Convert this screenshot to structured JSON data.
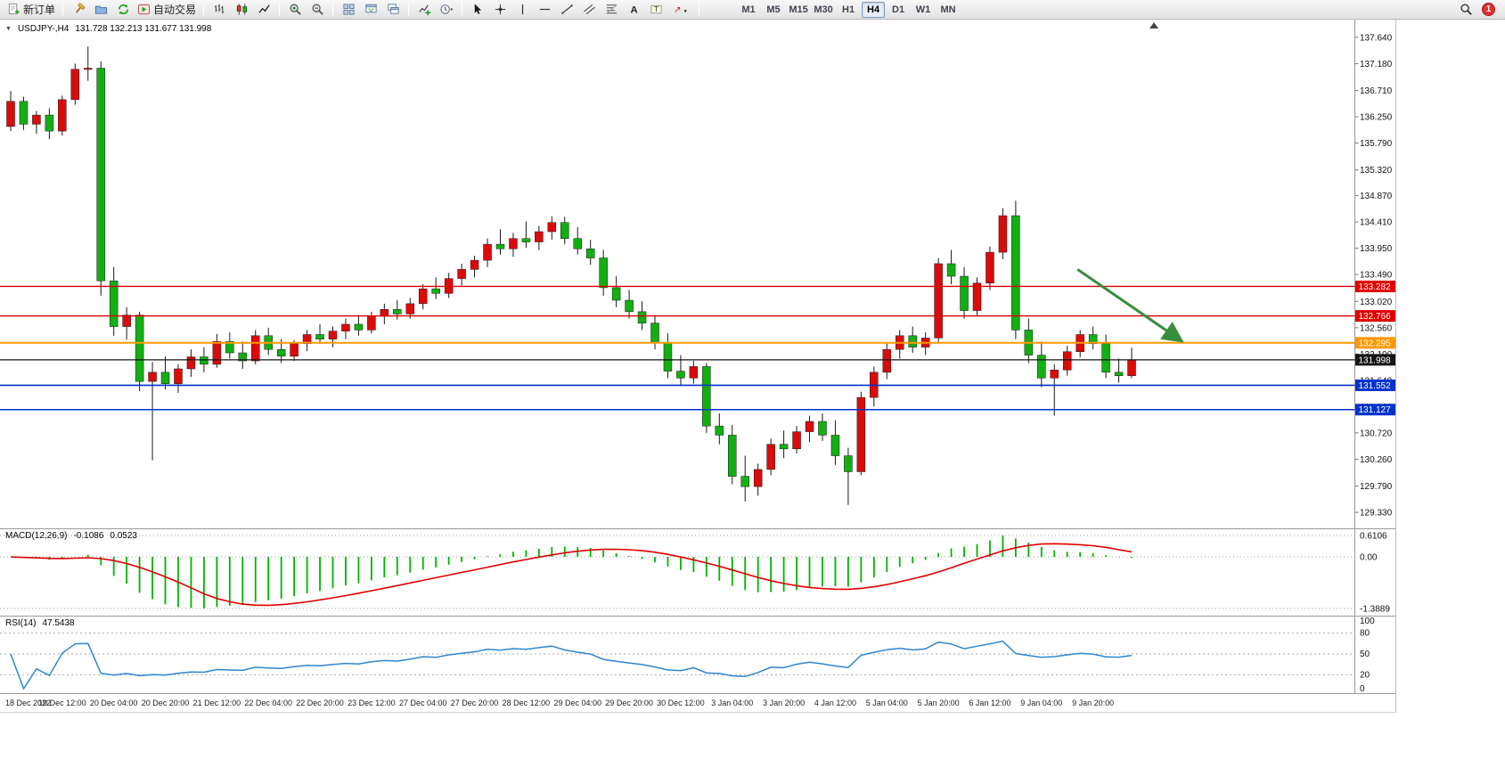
{
  "toolbar": {
    "new_order_label": "新订单",
    "autotrading_label": "自动交易",
    "timeframes": [
      "M1",
      "M5",
      "M15",
      "M30",
      "H1",
      "H4",
      "D1",
      "W1",
      "MN"
    ],
    "active_timeframe": "H4",
    "notification_badge": "1"
  },
  "chart_header": {
    "symbol_period": "USDJPY-,H4",
    "ohlc": "131.728 132.213 131.677 131.998"
  },
  "chart_data": {
    "type": "candlestick",
    "symbol": "USDJPY-",
    "timeframe": "H4",
    "last_bar": {
      "open": 131.728,
      "high": 132.213,
      "low": 131.677,
      "close": 131.998
    },
    "colors": {
      "up": "#dd0a0a",
      "down": "#12af12",
      "wick": "#1a1a1a",
      "macd_hist": "#00b300",
      "macd_signal": "#e00000",
      "rsi_line": "#2e86d0",
      "arrow": "#388e3c"
    },
    "price_axis_labels": [
      "137.640",
      "137.180",
      "136.710",
      "136.250",
      "135.790",
      "135.320",
      "134.870",
      "134.410",
      "133.950",
      "133.490",
      "133.020",
      "132.560",
      "132.100",
      "131.640",
      "131.180",
      "130.720",
      "130.260",
      "129.790",
      "129.330"
    ],
    "time_label_step": 4,
    "time_labels": [
      "18 Dec 2022",
      "19 Dec 12:00",
      "20 Dec 04:00",
      "20 Dec 20:00",
      "21 Dec 12:00",
      "22 Dec 04:00",
      "22 Dec 20:00",
      "23 Dec 12:00",
      "27 Dec 04:00",
      "27 Dec 20:00",
      "28 Dec 12:00",
      "29 Dec 04:00",
      "29 Dec 20:00",
      "30 Dec 12:00",
      "3 Jan 04:00",
      "3 Jan 20:00",
      "4 Jan 12:00",
      "5 Jan 04:00",
      "5 Jan 20:00",
      "6 Jan 12:00",
      "9 Jan 04:00",
      "9 Jan 20:00"
    ],
    "candles": [
      [
        136.08,
        136.7,
        136.0,
        136.52
      ],
      [
        136.52,
        136.6,
        136.02,
        136.12
      ],
      [
        136.12,
        136.35,
        135.95,
        136.28
      ],
      [
        136.28,
        136.4,
        135.86,
        136.0
      ],
      [
        136.0,
        136.62,
        135.92,
        136.55
      ],
      [
        136.55,
        137.18,
        136.46,
        137.08
      ],
      [
        137.08,
        137.48,
        136.88,
        137.1
      ],
      [
        137.1,
        137.22,
        133.12,
        133.38
      ],
      [
        133.38,
        133.62,
        132.42,
        132.58
      ],
      [
        132.58,
        132.92,
        132.35,
        132.78
      ],
      [
        132.78,
        132.84,
        131.45,
        131.62
      ],
      [
        131.62,
        131.96,
        130.24,
        131.78
      ],
      [
        131.78,
        132.06,
        131.48,
        131.58
      ],
      [
        131.58,
        131.92,
        131.42,
        131.84
      ],
      [
        131.84,
        132.18,
        131.7,
        132.05
      ],
      [
        132.05,
        132.22,
        131.78,
        131.92
      ],
      [
        131.92,
        132.45,
        131.86,
        132.32
      ],
      [
        132.32,
        132.48,
        132.02,
        132.12
      ],
      [
        132.12,
        132.32,
        131.84,
        131.98
      ],
      [
        131.98,
        132.52,
        131.92,
        132.42
      ],
      [
        132.42,
        132.56,
        132.08,
        132.18
      ],
      [
        132.18,
        132.36,
        131.94,
        132.06
      ],
      [
        132.06,
        132.34,
        131.98,
        132.28
      ],
      [
        132.28,
        132.52,
        132.15,
        132.44
      ],
      [
        132.44,
        132.62,
        132.28,
        132.36
      ],
      [
        132.36,
        132.58,
        132.22,
        132.5
      ],
      [
        132.5,
        132.72,
        132.36,
        132.62
      ],
      [
        132.62,
        132.78,
        132.42,
        132.52
      ],
      [
        132.52,
        132.84,
        132.46,
        132.76
      ],
      [
        132.76,
        132.98,
        132.62,
        132.88
      ],
      [
        132.88,
        133.04,
        132.7,
        132.8
      ],
      [
        132.8,
        133.08,
        132.72,
        132.98
      ],
      [
        132.98,
        133.32,
        132.88,
        133.24
      ],
      [
        133.24,
        133.44,
        133.06,
        133.16
      ],
      [
        133.16,
        133.52,
        133.08,
        133.42
      ],
      [
        133.42,
        133.68,
        133.3,
        133.58
      ],
      [
        133.58,
        133.82,
        133.44,
        133.74
      ],
      [
        133.74,
        134.12,
        133.62,
        134.02
      ],
      [
        134.02,
        134.28,
        133.84,
        133.94
      ],
      [
        133.94,
        134.22,
        133.8,
        134.12
      ],
      [
        134.12,
        134.42,
        133.96,
        134.06
      ],
      [
        134.06,
        134.34,
        133.92,
        134.24
      ],
      [
        134.24,
        134.51,
        134.1,
        134.4
      ],
      [
        134.4,
        134.5,
        134.02,
        134.12
      ],
      [
        134.12,
        134.32,
        133.84,
        133.94
      ],
      [
        133.94,
        134.1,
        133.66,
        133.78
      ],
      [
        133.78,
        133.92,
        133.12,
        133.26
      ],
      [
        133.26,
        133.46,
        132.92,
        133.04
      ],
      [
        133.04,
        133.22,
        132.72,
        132.84
      ],
      [
        132.84,
        133.02,
        132.52,
        132.64
      ],
      [
        132.64,
        132.78,
        132.18,
        132.3
      ],
      [
        132.3,
        132.46,
        131.68,
        131.8
      ],
      [
        131.8,
        132.08,
        131.54,
        131.68
      ],
      [
        131.68,
        131.98,
        131.58,
        131.88
      ],
      [
        131.88,
        131.94,
        130.72,
        130.84
      ],
      [
        130.84,
        131.06,
        130.52,
        130.68
      ],
      [
        130.68,
        130.86,
        129.82,
        129.96
      ],
      [
        129.96,
        130.32,
        129.52,
        129.78
      ],
      [
        129.78,
        130.18,
        129.62,
        130.08
      ],
      [
        130.08,
        130.62,
        129.98,
        130.52
      ],
      [
        130.52,
        130.76,
        130.28,
        130.44
      ],
      [
        130.44,
        130.84,
        130.36,
        130.74
      ],
      [
        130.74,
        131.02,
        130.56,
        130.92
      ],
      [
        130.92,
        131.06,
        130.58,
        130.68
      ],
      [
        130.68,
        130.94,
        130.16,
        130.32
      ],
      [
        130.32,
        130.46,
        129.46,
        130.04
      ],
      [
        130.04,
        131.44,
        129.98,
        131.34
      ],
      [
        131.34,
        131.88,
        131.18,
        131.78
      ],
      [
        131.78,
        132.28,
        131.66,
        132.18
      ],
      [
        132.18,
        132.52,
        132.02,
        132.42
      ],
      [
        132.42,
        132.58,
        132.12,
        132.22
      ],
      [
        132.22,
        132.48,
        132.08,
        132.38
      ],
      [
        132.38,
        133.78,
        132.3,
        133.68
      ],
      [
        133.68,
        133.92,
        133.32,
        133.46
      ],
      [
        133.46,
        133.62,
        132.72,
        132.86
      ],
      [
        132.86,
        133.44,
        132.78,
        133.34
      ],
      [
        133.34,
        133.98,
        133.22,
        133.88
      ],
      [
        133.88,
        134.65,
        133.76,
        134.52
      ],
      [
        134.52,
        134.78,
        132.36,
        132.52
      ],
      [
        132.52,
        132.72,
        131.94,
        132.08
      ],
      [
        132.08,
        132.32,
        131.52,
        131.68
      ],
      [
        131.68,
        131.92,
        131.02,
        131.82
      ],
      [
        131.82,
        132.24,
        131.72,
        132.14
      ],
      [
        132.14,
        132.52,
        132.04,
        132.44
      ],
      [
        132.44,
        132.58,
        132.18,
        132.28
      ],
      [
        132.28,
        132.44,
        131.68,
        131.78
      ],
      [
        131.78,
        132.02,
        131.6,
        131.72
      ],
      [
        131.72,
        132.21,
        131.68,
        132.0
      ]
    ],
    "hlines": [
      {
        "price": 133.282,
        "label": "133.282",
        "color": "#e00000",
        "width": 1.4
      },
      {
        "price": 132.766,
        "label": "132.766",
        "color": "#e00000",
        "width": 1.4
      },
      {
        "price": 132.295,
        "label": "132.295",
        "color": "#ff9800",
        "width": 2
      },
      {
        "price": 131.998,
        "label": "131.998",
        "color": "#151515",
        "width": 1.2
      },
      {
        "price": 131.552,
        "label": "131.552",
        "color": "#0033cc",
        "width": 1.6
      },
      {
        "price": 131.127,
        "label": "131.127",
        "color": "#0033cc",
        "width": 1.6
      }
    ],
    "trend_arrow": {
      "from_index": 82.8,
      "from_price": 133.58,
      "to_index": 90.8,
      "to_price": 132.34,
      "color": "#388e3c"
    },
    "indicators": {
      "macd": {
        "name": "MACD(12,26,9)",
        "main_value": "-0.1086",
        "signal_value": "0.0523",
        "scale_max": "0.6106",
        "scale_zero": "0.00",
        "scale_min": "-1.3889",
        "fast": 12,
        "slow": 26,
        "signal": 9
      },
      "rsi": {
        "name": "RSI(14)",
        "value": "47.5438",
        "period": 14,
        "scale_labels": [
          "100",
          "80",
          "50",
          "20",
          "0"
        ],
        "levels": [
          80,
          50,
          20
        ]
      }
    }
  }
}
